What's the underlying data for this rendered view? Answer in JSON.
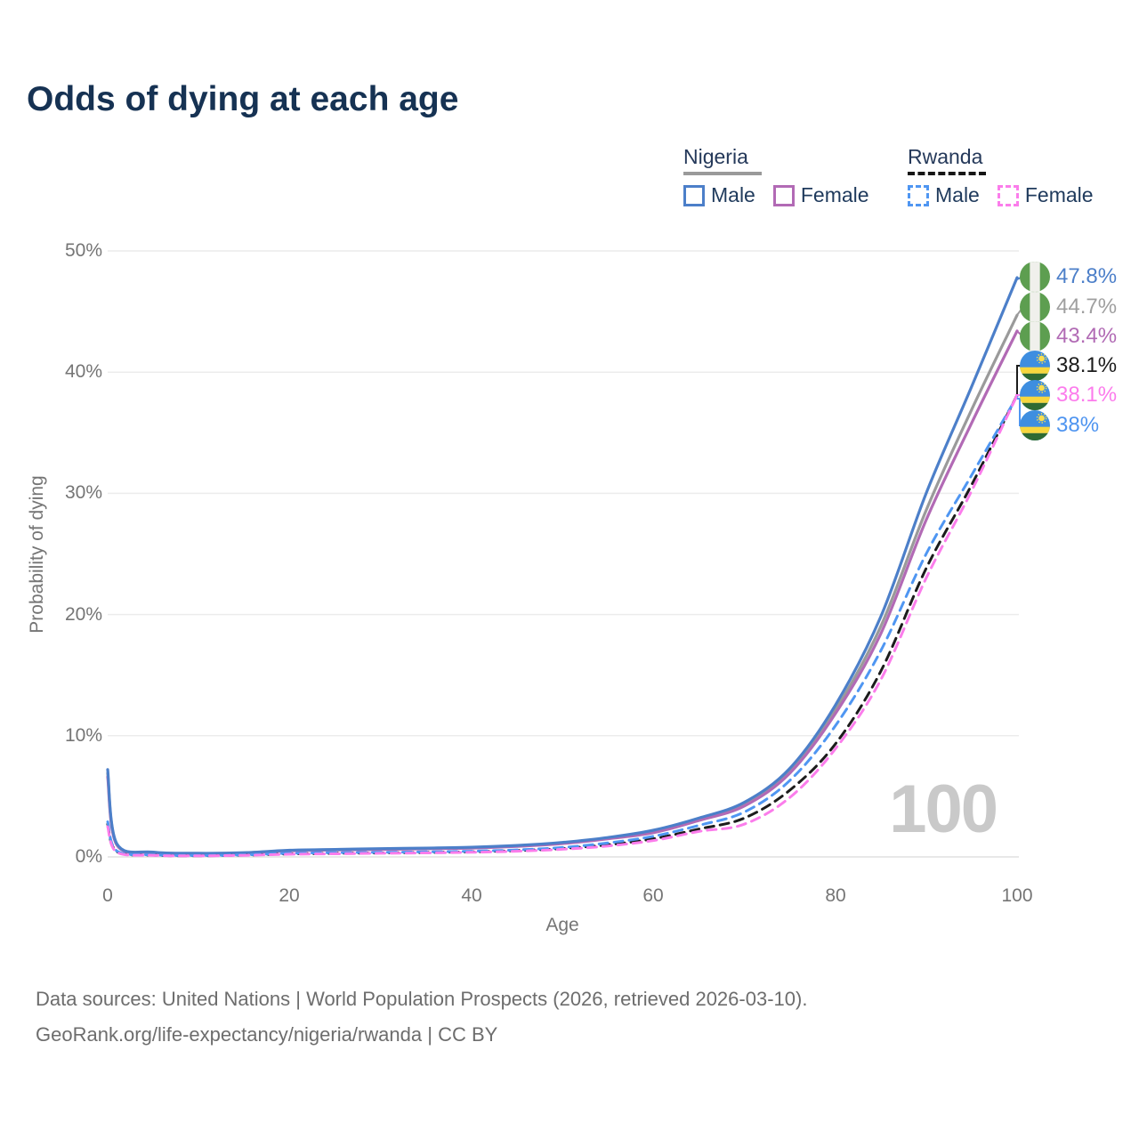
{
  "title": "Odds of dying at each age",
  "legend": {
    "groups": [
      {
        "country": "Nigeria",
        "line_style": "solid",
        "line_color": "#9a9a9a",
        "items": [
          {
            "label": "Male",
            "color": "#4c7fc9"
          },
          {
            "label": "Female",
            "color": "#b26ab5"
          }
        ]
      },
      {
        "country": "Rwanda",
        "line_style": "dashed",
        "line_color": "#151515",
        "items": [
          {
            "label": "Male",
            "color": "#4f96f2"
          },
          {
            "label": "Female",
            "color": "#fb7deb"
          }
        ]
      }
    ]
  },
  "axes": {
    "y": {
      "title": "Probability of dying",
      "ticks": [
        "50%",
        "40%",
        "30%",
        "20%",
        "10%",
        "0%"
      ]
    },
    "x": {
      "title": "Age",
      "ticks": [
        "0",
        "20",
        "40",
        "60",
        "80",
        "100"
      ]
    }
  },
  "watermark": "100",
  "end_labels": [
    {
      "value": "47.8%",
      "color": "#4c7fc9",
      "flag": "nigeria-flag-icon",
      "series": "Nigeria Male"
    },
    {
      "value": "44.7%",
      "color": "#9f9f9f",
      "flag": "nigeria-flag-icon",
      "series": "Nigeria Both sexes"
    },
    {
      "value": "43.4%",
      "color": "#b16ab4",
      "flag": "nigeria-flag-icon",
      "series": "Nigeria Female"
    },
    {
      "value": "38.1%",
      "color": "#1c1c1c",
      "flag": "rwanda-flag-icon",
      "series": "Rwanda Both sexes"
    },
    {
      "value": "38.1%",
      "color": "#fc7cec",
      "flag": "rwanda-flag-icon",
      "series": "Rwanda Female"
    },
    {
      "value": "38%",
      "color": "#4e94f0",
      "flag": "rwanda-flag-icon",
      "series": "Rwanda Male"
    }
  ],
  "footer": {
    "line1": "Data sources: United Nations | World Population Prospects (2026, retrieved 2026-03-10).",
    "line2": "GeoRank.org/life-expectancy/nigeria/rwanda | CC BY"
  },
  "chart_data": {
    "type": "line",
    "title": "Odds of dying at each age",
    "xlabel": "Age",
    "ylabel": "Probability of dying",
    "xlim": [
      0,
      100
    ],
    "ylim_pct": [
      0,
      50
    ],
    "grid": "horizontal",
    "legend_position": "top-right",
    "x": [
      0,
      1,
      5,
      10,
      15,
      20,
      25,
      30,
      35,
      40,
      45,
      50,
      55,
      60,
      65,
      70,
      75,
      80,
      85,
      90,
      95,
      100
    ],
    "series": [
      {
        "name": "Nigeria Both sexes",
        "style": "solid",
        "color": "#9a9a9a",
        "width": 3.2,
        "end_value_pct": 44.7,
        "values_pct": [
          6.9,
          1.05,
          0.38,
          0.28,
          0.33,
          0.52,
          0.6,
          0.65,
          0.7,
          0.77,
          0.9,
          1.15,
          1.55,
          2.1,
          3.1,
          4.35,
          7.1,
          12.1,
          19.0,
          28.6,
          36.9,
          44.7
        ]
      },
      {
        "name": "Nigeria Female",
        "style": "solid",
        "color": "#b26ab5",
        "width": 3.2,
        "end_value_pct": 43.4,
        "values_pct": [
          6.6,
          1.0,
          0.36,
          0.27,
          0.31,
          0.5,
          0.57,
          0.62,
          0.67,
          0.73,
          0.87,
          1.1,
          1.5,
          2.0,
          3.0,
          4.2,
          6.9,
          11.8,
          18.4,
          27.8,
          35.8,
          43.4
        ]
      },
      {
        "name": "Nigeria Male",
        "style": "solid",
        "color": "#4c7fc9",
        "width": 3.2,
        "end_value_pct": 47.8,
        "values_pct": [
          7.2,
          1.1,
          0.4,
          0.3,
          0.35,
          0.55,
          0.62,
          0.68,
          0.73,
          0.8,
          0.95,
          1.2,
          1.6,
          2.2,
          3.2,
          4.5,
          7.3,
          12.5,
          19.8,
          30.0,
          38.8,
          47.8
        ]
      },
      {
        "name": "Rwanda Both sexes",
        "style": "dashed",
        "color": "#1c1c1c",
        "width": 3.0,
        "end_value_pct": 38.1,
        "values_pct": [
          2.7,
          0.45,
          0.15,
          0.1,
          0.15,
          0.25,
          0.3,
          0.33,
          0.37,
          0.42,
          0.52,
          0.7,
          1.0,
          1.5,
          2.3,
          3.2,
          5.5,
          9.3,
          15.3,
          23.8,
          30.7,
          38.1
        ]
      },
      {
        "name": "Rwanda Male",
        "style": "dashed",
        "color": "#4f96f2",
        "width": 3.0,
        "end_value_pct": 38.0,
        "values_pct": [
          2.9,
          0.5,
          0.17,
          0.12,
          0.17,
          0.3,
          0.35,
          0.38,
          0.42,
          0.47,
          0.58,
          0.78,
          1.15,
          1.7,
          2.6,
          3.7,
          6.3,
          10.8,
          17.0,
          25.0,
          31.5,
          38.0
        ]
      },
      {
        "name": "Rwanda Female",
        "style": "dashed",
        "color": "#fb7deb",
        "width": 3.0,
        "end_value_pct": 38.1,
        "values_pct": [
          2.5,
          0.4,
          0.13,
          0.09,
          0.13,
          0.22,
          0.26,
          0.3,
          0.33,
          0.38,
          0.47,
          0.63,
          0.9,
          1.35,
          2.1,
          2.7,
          4.9,
          8.9,
          14.6,
          23.0,
          30.2,
          38.1
        ]
      }
    ]
  }
}
